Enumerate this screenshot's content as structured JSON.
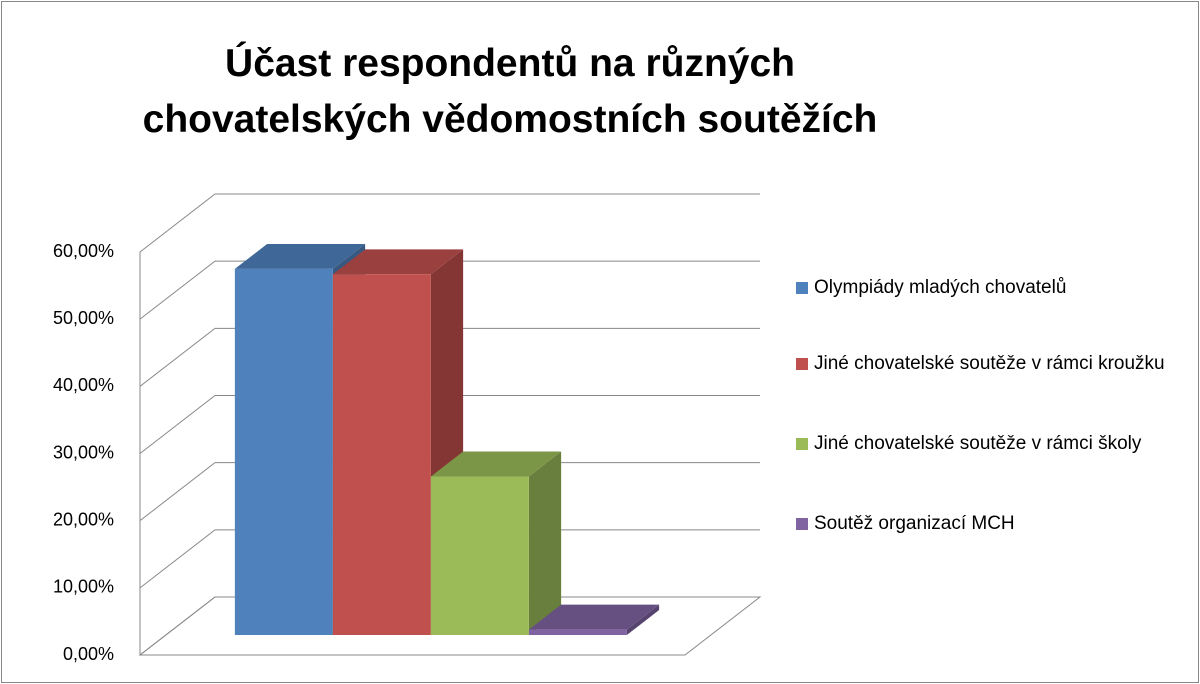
{
  "chart_data": {
    "type": "bar3d",
    "title": "Účast respondentů na různých chovatelských vědomostních soutěžích",
    "series": [
      {
        "name": "Olympiády mladých chovatelů",
        "color": "#4f81bd",
        "values": [
          54.5
        ]
      },
      {
        "name": "Jiné chovatelské soutěže v rámci kroužku",
        "color": "#c0504d",
        "values": [
          53.7
        ]
      },
      {
        "name": "Jiné chovatelské soutěže v rámci školy",
        "color": "#9bbb59",
        "values": [
          23.6
        ]
      },
      {
        "name": "Soutěž organizací MCH",
        "color": "#8064a2",
        "values": [
          0.8
        ]
      }
    ],
    "ylim": [
      0,
      60
    ],
    "yticks": [
      {
        "value": 0,
        "label": "0,00%"
      },
      {
        "value": 10,
        "label": "10,00%"
      },
      {
        "value": 20,
        "label": "20,00%"
      },
      {
        "value": 30,
        "label": "30,00%"
      },
      {
        "value": 40,
        "label": "40,00%"
      },
      {
        "value": 50,
        "label": "50,00%"
      },
      {
        "value": 60,
        "label": "60,00%"
      }
    ],
    "grid": true,
    "legend": "right"
  }
}
